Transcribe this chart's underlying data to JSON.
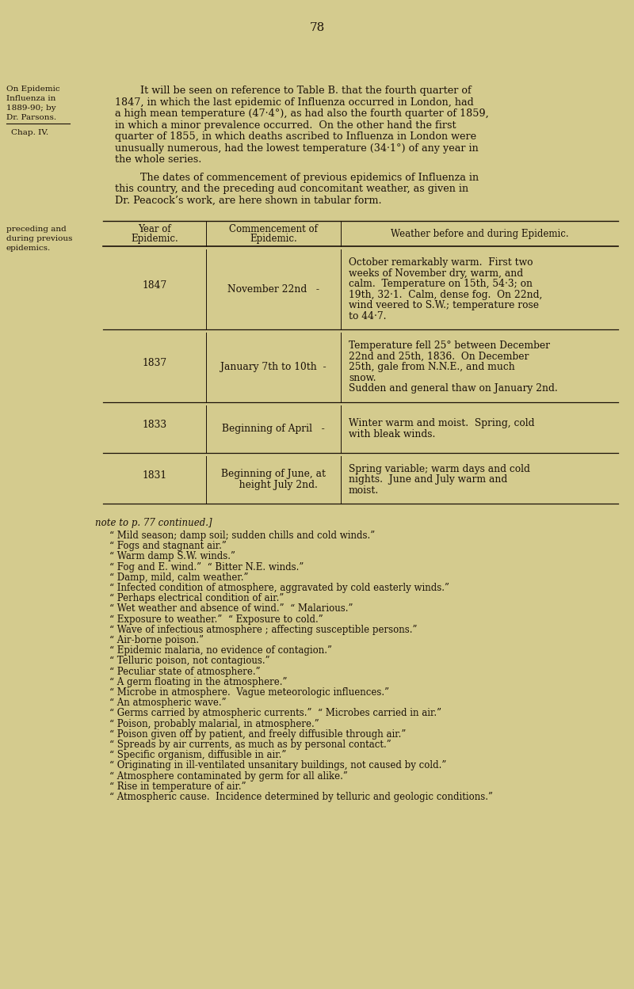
{
  "page_number": "78",
  "bg_color": "#d4cb8e",
  "text_color": "#1a1008",
  "page_width": 8.0,
  "page_height": 12.49,
  "footnote_lines": [
    "“ Mild season; damp soil; sudden chills and cold winds.”",
    "“ Fogs and stagnant air.”",
    "“ Warm damp S.W. winds.”",
    "“ Fog and E. wind.”  “ Bitter N.E. winds.”",
    "“ Damp, mild, calm weather.”",
    "“ Infected condition of atmosphere, aggravated by cold easterly winds.”",
    "“ Perhaps electrical condition of air.”",
    "“ Wet weather and absence of wind.”  “ Malarious.”",
    "“ Exposure to weather.”  “ Exposure to cold.”",
    "“ Wave of infectious atmosphere ; affecting susceptible persons.”",
    "“ Air-borne poison.”",
    "“ Epidemic malaria, no evidence of contagion.”",
    "“ Telluric poison, not contagious.”",
    "“ Peculiar state of atmosphere.”",
    "“ A germ floating in the atmosphere.”",
    "“ Microbe in atmosphere.  Vague meteorologic influences.”",
    "“ An atmospheric wave.”",
    "“ Germs carried by atmospheric currents.”  “ Microbes carried in air.”",
    "“ Poison, probably malarial, in atmosphere.”",
    "“ Poison given off by patient, and freely diffusible through air.”",
    "“ Spreads by air currents, as much as by personal contact.”",
    "“ Specific organism, diffusible in air.”",
    "“ Originating in ill-ventilated unsanitary buildings, not caused by cold.”",
    "“ Atmosphere contaminated by germ for all alike.”",
    "“ Rise in temperature of air.”",
    "“ Atmospheric cause.  Incidence determined by telluric and geologic conditions.”"
  ]
}
